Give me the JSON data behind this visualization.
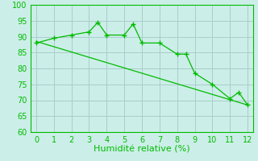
{
  "xlabel": "Humidité relative (%)",
  "xlim": [
    -0.3,
    12.3
  ],
  "ylim": [
    60,
    100
  ],
  "yticks": [
    60,
    65,
    70,
    75,
    80,
    85,
    90,
    95,
    100
  ],
  "xticks": [
    0,
    1,
    2,
    3,
    4,
    5,
    6,
    7,
    8,
    9,
    10,
    11,
    12
  ],
  "background_color": "#cceee8",
  "grid_color": "#aacccc",
  "line_color": "#00bb00",
  "jagged_x": [
    0,
    1,
    2,
    3,
    3.5,
    4,
    5,
    5.5,
    6,
    7,
    8,
    8.5,
    9,
    10,
    11,
    11.5,
    12
  ],
  "jagged_y": [
    88,
    89.5,
    90.5,
    91.5,
    94.5,
    90.5,
    90.5,
    94,
    88,
    88,
    84.5,
    84.5,
    78.5,
    75,
    70.5,
    72.5,
    68.5
  ],
  "trend_x": [
    0,
    12
  ],
  "trend_y": [
    88.5,
    68.5
  ],
  "xlabel_color": "#00bb00",
  "xlabel_fontsize": 8,
  "tick_fontsize": 7
}
